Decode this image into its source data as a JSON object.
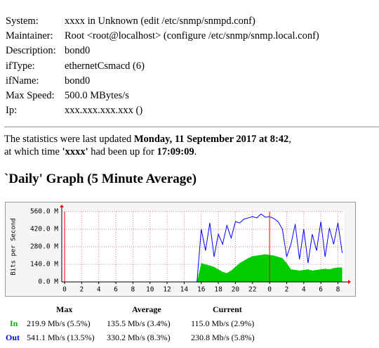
{
  "info": [
    {
      "label": "System:",
      "value": "xxxx in Unknown (edit /etc/snmp/snmpd.conf)"
    },
    {
      "label": "Maintainer:",
      "value": "Root <root@localhost> (configure /etc/snmp/snmp.local.conf)"
    },
    {
      "label": "Description:",
      "value": "bond0"
    },
    {
      "label": "ifType:",
      "value": "ethernetCsmacd (6)"
    },
    {
      "label": "ifName:",
      "value": "bond0"
    },
    {
      "label": "Max Speed:",
      "value": "500.0 MBytes/s"
    },
    {
      "label": "Ip:",
      "value": "xxx.xxx.xxx.xxx ()"
    }
  ],
  "update_lines": [
    [
      {
        "text": "The statistics were last updated ",
        "bold": false
      },
      {
        "text": "Monday, 11 September 2017 at 8:42",
        "bold": true
      },
      {
        "text": ",",
        "bold": false
      }
    ],
    [
      {
        "text": "at which time ",
        "bold": false
      },
      {
        "text": "'xxxx'",
        "bold": true
      },
      {
        "text": " had been up for ",
        "bold": false
      },
      {
        "text": "17:09:09",
        "bold": true
      },
      {
        "text": ".",
        "bold": false
      }
    ]
  ],
  "graph_title": "`Daily' Graph (5 Minute Average)",
  "chart_data": {
    "type": "line",
    "y_label": "Bits per Second",
    "x": [
      0,
      15.5,
      16,
      16.5,
      17,
      17.5,
      18,
      18.5,
      19,
      19.5,
      20,
      20.5,
      21,
      21.5,
      22,
      22.5,
      23,
      23.5,
      24,
      24.5,
      25,
      25.5,
      26,
      26.5,
      27,
      27.5,
      28,
      28.5,
      29,
      29.5,
      30,
      30.5,
      31,
      31.5,
      32,
      32.5
    ],
    "series": [
      {
        "name": "In",
        "style": "area",
        "color": "#00cc00",
        "values": [
          0,
          0,
          150,
          140,
          130,
          120,
          100,
          80,
          70,
          90,
          120,
          150,
          170,
          190,
          205,
          210,
          215,
          219.9,
          215,
          210,
          200,
          190,
          150,
          100,
          95,
          90,
          95,
          100,
          90,
          95,
          100,
          105,
          100,
          110,
          115,
          115
        ]
      },
      {
        "name": "Out",
        "style": "line",
        "color": "#0000ff",
        "values": [
          0,
          0,
          420,
          250,
          470,
          200,
          380,
          300,
          450,
          350,
          480,
          470,
          500,
          510,
          520,
          510,
          541.1,
          515,
          520,
          505,
          480,
          420,
          200,
          300,
          460,
          180,
          420,
          150,
          380,
          250,
          480,
          200,
          430,
          300,
          470,
          230.8
        ]
      }
    ],
    "xlim": [
      -0.33,
      32.7
    ],
    "xticks": [
      0,
      2,
      4,
      6,
      8,
      10,
      12,
      14,
      16,
      18,
      20,
      22,
      {
        "value": 24,
        "label": "0"
      },
      {
        "value": 26,
        "label": "2"
      },
      {
        "value": 28,
        "label": "4"
      },
      {
        "value": 30,
        "label": "6"
      },
      {
        "value": 32,
        "label": "8"
      }
    ],
    "ylim": [
      0,
      560
    ],
    "yticks": [
      {
        "value": 0,
        "label": "0.0 M"
      },
      {
        "value": 140,
        "label": "140.0 M"
      },
      {
        "value": 280,
        "label": "280.0 M"
      },
      {
        "value": 420,
        "label": "420.0 M"
      },
      {
        "value": 560,
        "label": "560.0 M"
      }
    ],
    "grid": true
  },
  "stats": {
    "headers": [
      "Max",
      "Average",
      "Current"
    ],
    "rows": [
      {
        "name": "In",
        "color": "#00aa00",
        "cells": [
          "219.9 Mb/s (5.5%)",
          "135.5 Mb/s (3.4%)",
          "115.0 Mb/s (2.9%)"
        ]
      },
      {
        "name": "Out",
        "color": "#0000ff",
        "cells": [
          "541.1 Mb/s (13.5%)",
          "330.2 Mb/s (8.3%)",
          "230.8 Mb/s (5.8%)"
        ]
      }
    ]
  }
}
